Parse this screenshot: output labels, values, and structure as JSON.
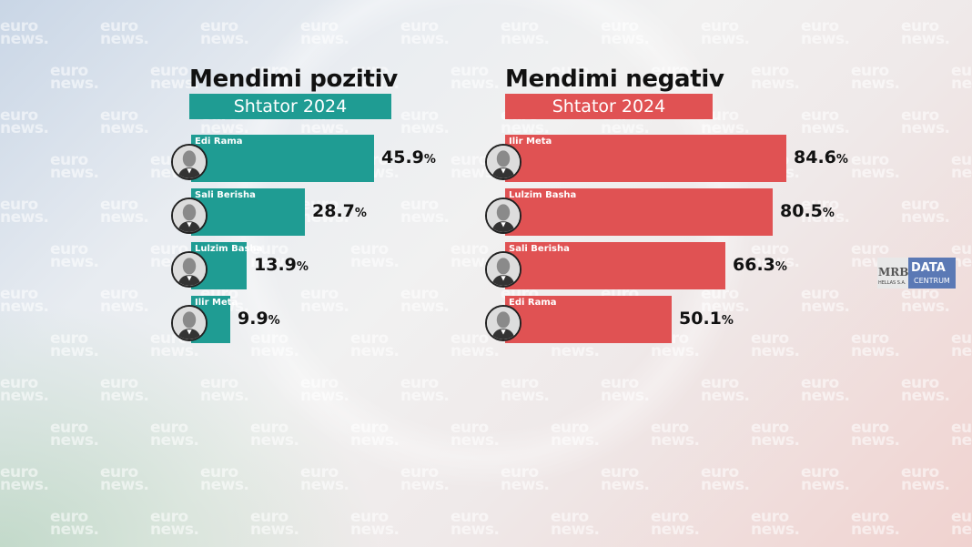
{
  "watermark": {
    "line1": "euro",
    "line2": "news."
  },
  "colors": {
    "positive": "#1f9c93",
    "negative": "#e05253"
  },
  "logo": {
    "mrb": "MRB",
    "mrb_sub": "HELLAS S.A.",
    "data": "DATA",
    "centrum": "CENTRUM"
  },
  "chart_data": [
    {
      "type": "bar",
      "orientation": "horizontal",
      "title": "Mendimi pozitiv",
      "subtitle": "Shtator 2024",
      "color": "#1f9c93",
      "categories": [
        "Edi Rama",
        "Sali Berisha",
        "Lulzim Basha",
        "Ilir Meta"
      ],
      "values": [
        45.9,
        28.7,
        13.9,
        9.9
      ],
      "value_labels": [
        "45.9",
        "28.7",
        "13.9",
        "9.9"
      ],
      "unit": "%"
    },
    {
      "type": "bar",
      "orientation": "horizontal",
      "title": "Mendimi negativ",
      "subtitle": "Shtator 2024",
      "color": "#e05253",
      "categories": [
        "Ilir Meta",
        "Lulzim Basha",
        "Sali Berisha",
        "Edi Rama"
      ],
      "values": [
        84.6,
        80.5,
        66.3,
        50.1
      ],
      "value_labels": [
        "84.6",
        "80.5",
        "66.3",
        "50.1"
      ],
      "unit": "%"
    }
  ]
}
